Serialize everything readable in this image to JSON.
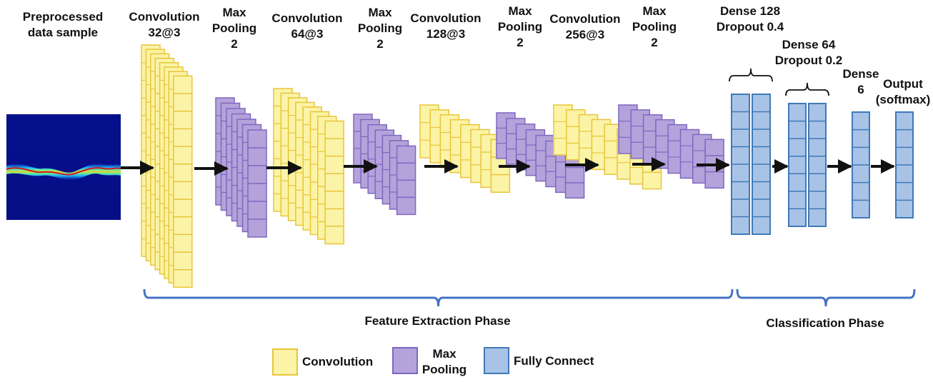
{
  "input_label": [
    "Preprocessed",
    "data sample"
  ],
  "layers": [
    {
      "id": "conv1",
      "kind": "convolution",
      "label": [
        "Convolution",
        "32@3"
      ]
    },
    {
      "id": "pool1",
      "kind": "maxpool",
      "label": [
        "Max",
        "Pooling",
        "2"
      ]
    },
    {
      "id": "conv2",
      "kind": "convolution",
      "label": [
        "Convolution",
        "64@3"
      ]
    },
    {
      "id": "pool2",
      "kind": "maxpool",
      "label": [
        "Max",
        "Pooling",
        "2"
      ]
    },
    {
      "id": "conv3",
      "kind": "convolution",
      "label": [
        "Convolution",
        "128@3"
      ]
    },
    {
      "id": "pool3",
      "kind": "maxpool",
      "label": [
        "Max",
        "Pooling",
        "2"
      ]
    },
    {
      "id": "conv4",
      "kind": "convolution",
      "label": [
        "Convolution",
        "256@3"
      ]
    },
    {
      "id": "pool4",
      "kind": "maxpool",
      "label": [
        "Max",
        "Pooling",
        "2"
      ]
    },
    {
      "id": "dense1",
      "kind": "fully-connect",
      "label": [
        "Dense 128",
        "Dropout 0.4"
      ]
    },
    {
      "id": "dense2",
      "kind": "fully-connect",
      "label": [
        "Dense 64",
        "Dropout 0.2"
      ]
    },
    {
      "id": "dense3",
      "kind": "fully-connect",
      "label": [
        "Dense",
        "6"
      ]
    },
    {
      "id": "output",
      "kind": "fully-connect",
      "label": [
        "Output",
        "(softmax)"
      ]
    }
  ],
  "phases": {
    "feature": "Feature Extraction Phase",
    "classification": "Classification Phase"
  },
  "legend": {
    "convolution": "Convolution",
    "maxpool": [
      "Max",
      "Pooling"
    ],
    "fully_connect": "Fully Connect"
  },
  "colors": {
    "conv_fill": "#FBF3A6",
    "conv_stroke": "#E8C53A",
    "pool_fill": "#B4A3DB",
    "pool_stroke": "#7E67C0",
    "fc_fill": "#A9C3E6",
    "fc_stroke": "#3F79B8",
    "brace": "#4472C4",
    "arrow": "#111111"
  }
}
